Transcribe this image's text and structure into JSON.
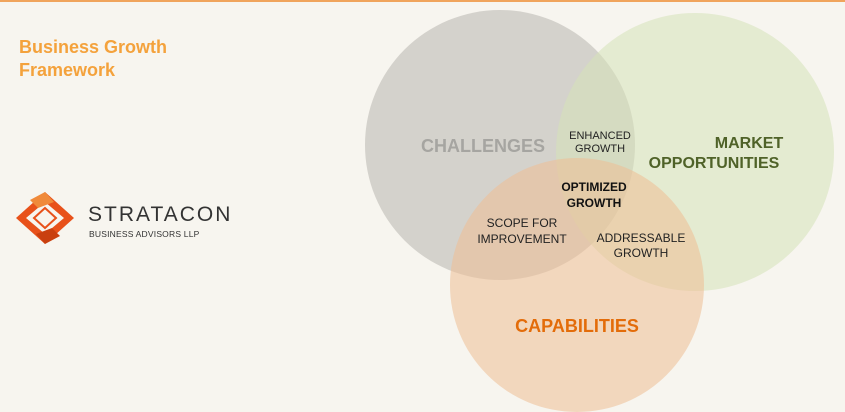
{
  "title": {
    "line1": "Business Growth",
    "line2": "Framework"
  },
  "logo": {
    "name": "STRATACON",
    "subtitle": "BUSINESS ADVISORS LLP"
  },
  "venn": {
    "sets": [
      {
        "name": "CHALLENGES",
        "color": "#c7c4bd",
        "text_color": "#a6a5a1"
      },
      {
        "name_lines": [
          "MARKET",
          "OPPORTUNITIES"
        ],
        "color": "#dce6c5",
        "text_color": "#4f6228"
      },
      {
        "name": "CAPABILITIES",
        "color": "#f0c7a3",
        "text_color": "#e36c0a"
      }
    ],
    "intersections": {
      "challenges_market": [
        "ENHANCED",
        "GROWTH"
      ],
      "challenges_capabilities": [
        "SCOPE FOR",
        "IMPROVEMENT"
      ],
      "market_capabilities": [
        "ADDRESSABLE",
        "GROWTH"
      ],
      "all_three": [
        "OPTIMIZED",
        "GROWTH"
      ]
    }
  },
  "colors": {
    "accent_orange": "#f4a23c",
    "logo_orange": "#e8511a",
    "background": "#f7f5ef"
  }
}
